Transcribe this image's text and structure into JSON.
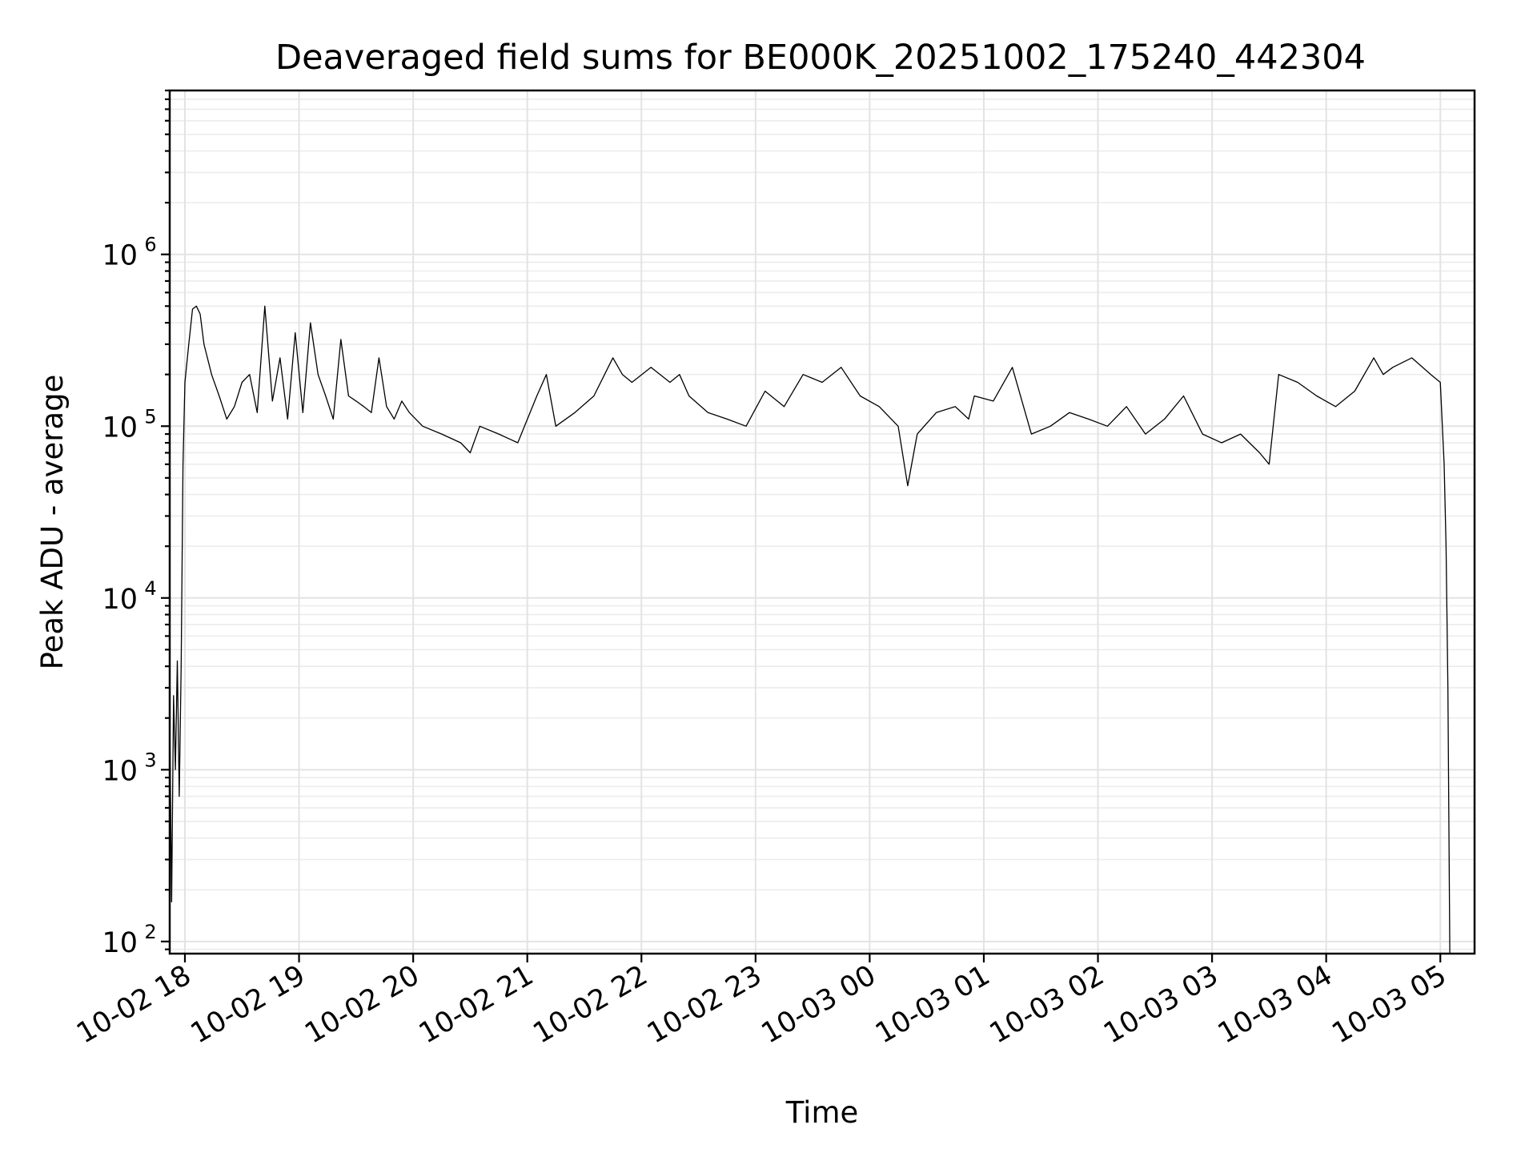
{
  "chart_data": {
    "type": "line",
    "title": "Deaveraged field sums for BE000K_20251002_175240_442304",
    "xlabel": "Time",
    "ylabel": "Peak ADU - average",
    "yscale": "log",
    "ylim": [
      85,
      9000000
    ],
    "xlim": [
      "2025-10-02 17:52",
      "2025-10-03 05:18"
    ],
    "grid": true,
    "legend": "none",
    "line_color": "#000000",
    "x_ticks": [
      {
        "time": "2025-10-02 18:00",
        "label": "10-02 18"
      },
      {
        "time": "2025-10-02 19:00",
        "label": "10-02 19"
      },
      {
        "time": "2025-10-02 20:00",
        "label": "10-02 20"
      },
      {
        "time": "2025-10-02 21:00",
        "label": "10-02 21"
      },
      {
        "time": "2025-10-02 22:00",
        "label": "10-02 22"
      },
      {
        "time": "2025-10-02 23:00",
        "label": "10-02 23"
      },
      {
        "time": "2025-10-03 00:00",
        "label": "10-03 00"
      },
      {
        "time": "2025-10-03 01:00",
        "label": "10-03 01"
      },
      {
        "time": "2025-10-03 02:00",
        "label": "10-03 02"
      },
      {
        "time": "2025-10-03 03:00",
        "label": "10-03 03"
      },
      {
        "time": "2025-10-03 04:00",
        "label": "10-03 04"
      },
      {
        "time": "2025-10-03 05:00",
        "label": "10-03 05"
      }
    ],
    "y_ticks": [
      {
        "value": 100,
        "base": "10",
        "exp": "2"
      },
      {
        "value": 1000,
        "base": "10",
        "exp": "3"
      },
      {
        "value": 10000,
        "base": "10",
        "exp": "4"
      },
      {
        "value": 100000,
        "base": "10",
        "exp": "5"
      },
      {
        "value": 1000000,
        "base": "10",
        "exp": "6"
      }
    ],
    "series": [
      {
        "x": [
          "2025-10-02 17:52",
          "2025-10-02 17:53",
          "2025-10-02 17:54",
          "2025-10-02 17:55",
          "2025-10-02 17:56",
          "2025-10-02 17:57",
          "2025-10-02 17:58",
          "2025-10-02 17:59",
          "2025-10-02 18:00",
          "2025-10-02 18:02",
          "2025-10-02 18:04",
          "2025-10-02 18:06",
          "2025-10-02 18:08",
          "2025-10-02 18:10",
          "2025-10-02 18:14",
          "2025-10-02 18:18",
          "2025-10-02 18:22",
          "2025-10-02 18:26",
          "2025-10-02 18:30",
          "2025-10-02 18:34",
          "2025-10-02 18:38",
          "2025-10-02 18:42",
          "2025-10-02 18:46",
          "2025-10-02 18:50",
          "2025-10-02 18:54",
          "2025-10-02 18:58",
          "2025-10-02 19:02",
          "2025-10-02 19:06",
          "2025-10-02 19:10",
          "2025-10-02 19:14",
          "2025-10-02 19:18",
          "2025-10-02 19:22",
          "2025-10-02 19:26",
          "2025-10-02 19:30",
          "2025-10-02 19:34",
          "2025-10-02 19:38",
          "2025-10-02 19:42",
          "2025-10-02 19:46",
          "2025-10-02 19:50",
          "2025-10-02 19:54",
          "2025-10-02 19:58",
          "2025-10-02 20:05",
          "2025-10-02 20:15",
          "2025-10-02 20:25",
          "2025-10-02 20:30",
          "2025-10-02 20:35",
          "2025-10-02 20:45",
          "2025-10-02 20:55",
          "2025-10-02 21:05",
          "2025-10-02 21:10",
          "2025-10-02 21:15",
          "2025-10-02 21:25",
          "2025-10-02 21:35",
          "2025-10-02 21:45",
          "2025-10-02 21:50",
          "2025-10-02 21:55",
          "2025-10-02 22:05",
          "2025-10-02 22:15",
          "2025-10-02 22:20",
          "2025-10-02 22:25",
          "2025-10-02 22:35",
          "2025-10-02 22:45",
          "2025-10-02 22:55",
          "2025-10-02 23:05",
          "2025-10-02 23:15",
          "2025-10-02 23:25",
          "2025-10-02 23:35",
          "2025-10-02 23:45",
          "2025-10-02 23:55",
          "2025-10-03 00:05",
          "2025-10-03 00:15",
          "2025-10-03 00:20",
          "2025-10-03 00:25",
          "2025-10-03 00:35",
          "2025-10-03 00:45",
          "2025-10-03 00:52",
          "2025-10-03 00:55",
          "2025-10-03 01:05",
          "2025-10-03 01:15",
          "2025-10-03 01:25",
          "2025-10-03 01:35",
          "2025-10-03 01:45",
          "2025-10-03 01:55",
          "2025-10-03 02:05",
          "2025-10-03 02:15",
          "2025-10-03 02:25",
          "2025-10-03 02:35",
          "2025-10-03 02:45",
          "2025-10-03 02:55",
          "2025-10-03 03:05",
          "2025-10-03 03:15",
          "2025-10-03 03:25",
          "2025-10-03 03:30",
          "2025-10-03 03:35",
          "2025-10-03 03:45",
          "2025-10-03 03:55",
          "2025-10-03 04:05",
          "2025-10-03 04:15",
          "2025-10-03 04:25",
          "2025-10-03 04:30",
          "2025-10-03 04:35",
          "2025-10-03 04:45",
          "2025-10-03 04:55",
          "2025-10-03 05:00",
          "2025-10-03 05:02",
          "2025-10-03 05:03",
          "2025-10-03 05:04",
          "2025-10-03 05:05"
        ],
        "y": [
          2000,
          170,
          2700,
          1000,
          4300,
          700,
          4000,
          60000,
          180000,
          300000,
          480000,
          500000,
          450000,
          300000,
          200000,
          150000,
          110000,
          130000,
          180000,
          200000,
          120000,
          500000,
          140000,
          250000,
          110000,
          350000,
          120000,
          400000,
          200000,
          150000,
          110000,
          320000,
          150000,
          140000,
          130000,
          120000,
          250000,
          130000,
          110000,
          140000,
          120000,
          100000,
          90000,
          80000,
          70000,
          100000,
          90000,
          80000,
          150000,
          200000,
          100000,
          120000,
          150000,
          250000,
          200000,
          180000,
          220000,
          180000,
          200000,
          150000,
          120000,
          110000,
          100000,
          160000,
          130000,
          200000,
          180000,
          220000,
          150000,
          130000,
          100000,
          45000,
          90000,
          120000,
          130000,
          110000,
          150000,
          140000,
          220000,
          90000,
          100000,
          120000,
          110000,
          100000,
          130000,
          90000,
          110000,
          150000,
          90000,
          80000,
          90000,
          70000,
          60000,
          200000,
          180000,
          150000,
          130000,
          160000,
          250000,
          200000,
          220000,
          250000,
          200000,
          180000,
          60000,
          20000,
          3000,
          85
        ]
      }
    ]
  }
}
